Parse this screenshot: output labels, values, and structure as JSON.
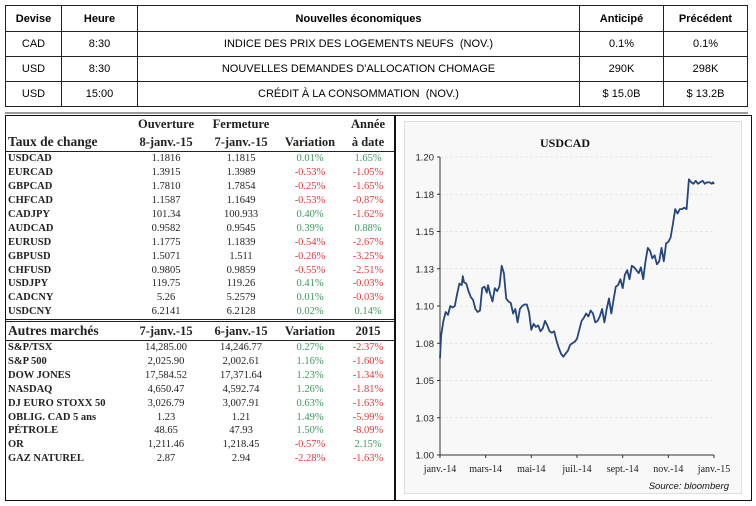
{
  "economic_news": {
    "headers": [
      "Devise",
      "Heure",
      "Nouvelles économiques",
      "Anticipé",
      "Précédent"
    ],
    "rows": [
      {
        "devise": "CAD",
        "heure": "8:30",
        "nouvelle": "INDICE DES PRIX DES LOGEMENTS NEUFS  (NOV.)",
        "anticipe": "0.1%",
        "precedent": "0.1%"
      },
      {
        "devise": "USD",
        "heure": "8:30",
        "nouvelle": "NOUVELLES DEMANDES D'ALLOCATION CHOMAGE",
        "anticipe": "290K",
        "precedent": "298K"
      },
      {
        "devise": "USD",
        "heure": "15:00",
        "nouvelle": "CRÉDIT À LA CONSOMMATION  (NOV.)",
        "anticipe": "$ 15.0B",
        "precedent": "$ 13.2B"
      }
    ]
  },
  "fx": {
    "header_top": [
      "",
      "Ouverture",
      "Fermeture",
      "",
      "Année"
    ],
    "header_bottom": [
      "Taux de change",
      "8-janv.-15",
      "7-janv.-15",
      "Variation",
      "à date"
    ],
    "rows": [
      {
        "name": "USDCAD",
        "open": "1.1816",
        "close": "1.1815",
        "var": "0.01%",
        "ytd": "1.65%"
      },
      {
        "name": "EURCAD",
        "open": "1.3915",
        "close": "1.3989",
        "var": "-0.53%",
        "ytd": "-1.05%"
      },
      {
        "name": "GBPCAD",
        "open": "1.7810",
        "close": "1.7854",
        "var": "-0.25%",
        "ytd": "-1.65%"
      },
      {
        "name": "CHFCAD",
        "open": "1.1587",
        "close": "1.1649",
        "var": "-0.53%",
        "ytd": "-0.87%"
      },
      {
        "name": "CADJPY",
        "open": "101.34",
        "close": "100.933",
        "var": "0.40%",
        "ytd": "-1.62%"
      },
      {
        "name": "AUDCAD",
        "open": "0.9582",
        "close": "0.9545",
        "var": "0.39%",
        "ytd": "0.88%"
      },
      {
        "name": "EURUSD",
        "open": "1.1775",
        "close": "1.1839",
        "var": "-0.54%",
        "ytd": "-2.67%"
      },
      {
        "name": "GBPUSD",
        "open": "1.5071",
        "close": "1.511",
        "var": "-0.26%",
        "ytd": "-3.25%"
      },
      {
        "name": "CHFUSD",
        "open": "0.9805",
        "close": "0.9859",
        "var": "-0.55%",
        "ytd": "-2.51%"
      },
      {
        "name": "USDJPY",
        "open": "119.75",
        "close": "119.26",
        "var": "0.41%",
        "ytd": "-0.03%"
      },
      {
        "name": "CADCNY",
        "open": "5.26",
        "close": "5.2579",
        "var": "0.01%",
        "ytd": "-0.03%"
      },
      {
        "name": "USDCNY",
        "open": "6.2141",
        "close": "6.2128",
        "var": "0.02%",
        "ytd": "0.14%"
      }
    ]
  },
  "markets": {
    "header": [
      "Autres marchés",
      "7-janv.-15",
      "6-janv.-15",
      "Variation",
      "2015"
    ],
    "rows": [
      {
        "name": "S&P/TSX",
        "d1": "14,285.00",
        "d2": "14,246.77",
        "var": "0.27%",
        "ytd": "-2.37%"
      },
      {
        "name": "S&P 500",
        "d1": "2,025.90",
        "d2": "2,002.61",
        "var": "1.16%",
        "ytd": "-1.60%"
      },
      {
        "name": "DOW JONES",
        "d1": "17,584.52",
        "d2": "17,371.64",
        "var": "1.23%",
        "ytd": "-1.34%"
      },
      {
        "name": "NASDAQ",
        "d1": "4,650.47",
        "d2": "4,592.74",
        "var": "1.26%",
        "ytd": "-1.81%"
      },
      {
        "name": "DJ EURO STOXX 50",
        "d1": "3,026.79",
        "d2": "3,007.91",
        "var": "0.63%",
        "ytd": "-1.63%"
      },
      {
        "name": "OBLIG. CAD 5 ans",
        "d1": "1.23",
        "d2": "1.21",
        "var": "1.49%",
        "ytd": "-5.99%"
      },
      {
        "name": "PÉTROLE",
        "d1": "48.65",
        "d2": "47.93",
        "var": "1.50%",
        "ytd": "-8.09%"
      },
      {
        "name": "OR",
        "d1": "1,211.46",
        "d2": "1,218.45",
        "var": "-0.57%",
        "ytd": "2.15%"
      },
      {
        "name": "GAZ NATUREL",
        "d1": "2.87",
        "d2": "2.94",
        "var": "-2.28%",
        "ytd": "-1.63%"
      }
    ]
  },
  "colors": {
    "positive": "#3a9a5c",
    "negative": "#e8383a",
    "line": "#24467f"
  },
  "chart_data": {
    "type": "line",
    "title": "USDCAD",
    "xlabel": "",
    "ylabel": "",
    "source": "Source: bloomberg",
    "ylim": [
      1.0,
      1.2
    ],
    "yticks": [
      1.0,
      1.025,
      1.05,
      1.075,
      1.1,
      1.125,
      1.15,
      1.175,
      1.2
    ],
    "ytick_labels": [
      "1.00",
      "1.03",
      "1.05",
      "1.08",
      "1.10",
      "1.13",
      "1.15",
      "1.18",
      "1.20"
    ],
    "xtick_labels": [
      "janv.-14",
      "mars-14",
      "mai-14",
      "juil.-14",
      "sept.-14",
      "nov.-14",
      "janv.-15"
    ],
    "xlim_months": [
      0,
      12
    ],
    "grid": true,
    "series": [
      {
        "name": "USDCAD",
        "x_months": [
          0.0,
          0.05,
          0.15,
          0.25,
          0.35,
          0.45,
          0.55,
          0.65,
          0.75,
          0.85,
          0.95,
          1.0,
          1.05,
          1.15,
          1.25,
          1.35,
          1.45,
          1.55,
          1.65,
          1.75,
          1.85,
          1.95,
          2.05,
          2.1,
          2.2,
          2.3,
          2.4,
          2.5,
          2.6,
          2.7,
          2.8,
          2.9,
          3.0,
          3.1,
          3.2,
          3.3,
          3.4,
          3.5,
          3.6,
          3.7,
          3.8,
          3.9,
          4.0,
          4.1,
          4.2,
          4.3,
          4.4,
          4.5,
          4.6,
          4.7,
          4.8,
          4.9,
          5.0,
          5.1,
          5.2,
          5.3,
          5.4,
          5.5,
          5.6,
          5.7,
          5.8,
          5.9,
          6.0,
          6.1,
          6.2,
          6.3,
          6.4,
          6.5,
          6.6,
          6.7,
          6.8,
          6.9,
          7.0,
          7.1,
          7.2,
          7.3,
          7.4,
          7.5,
          7.6,
          7.7,
          7.8,
          7.9,
          8.0,
          8.1,
          8.2,
          8.3,
          8.4,
          8.5,
          8.6,
          8.7,
          8.8,
          8.9,
          9.0,
          9.1,
          9.2,
          9.3,
          9.4,
          9.5,
          9.6,
          9.7,
          9.8,
          9.9,
          10.0,
          10.1,
          10.2,
          10.3,
          10.4,
          10.5,
          10.6,
          10.7,
          10.8,
          10.9,
          11.0,
          11.1,
          11.2,
          11.3,
          11.4,
          11.5,
          11.6,
          11.7,
          11.8,
          11.9,
          11.95,
          12.0
        ],
        "values": [
          1.065,
          1.08,
          1.09,
          1.096,
          1.094,
          1.1,
          1.099,
          1.1,
          1.108,
          1.115,
          1.114,
          1.12,
          1.116,
          1.115,
          1.11,
          1.106,
          1.104,
          1.098,
          1.096,
          1.097,
          1.112,
          1.113,
          1.109,
          1.114,
          1.108,
          1.103,
          1.112,
          1.11,
          1.113,
          1.127,
          1.122,
          1.105,
          1.103,
          1.102,
          1.095,
          1.098,
          1.089,
          1.098,
          1.1,
          1.101,
          1.101,
          1.096,
          1.084,
          1.088,
          1.086,
          1.087,
          1.083,
          1.085,
          1.09,
          1.087,
          1.083,
          1.082,
          1.083,
          1.077,
          1.072,
          1.068,
          1.066,
          1.068,
          1.07,
          1.074,
          1.075,
          1.076,
          1.078,
          1.084,
          1.09,
          1.092,
          1.095,
          1.093,
          1.097,
          1.095,
          1.089,
          1.09,
          1.093,
          1.098,
          1.089,
          1.098,
          1.105,
          1.095,
          1.104,
          1.113,
          1.114,
          1.118,
          1.112,
          1.121,
          1.124,
          1.118,
          1.127,
          1.126,
          1.124,
          1.122,
          1.126,
          1.118,
          1.13,
          1.139,
          1.137,
          1.132,
          1.134,
          1.128,
          1.13,
          1.139,
          1.13,
          1.142,
          1.143,
          1.146,
          1.155,
          1.165,
          1.162,
          1.165,
          1.165,
          1.166,
          1.165,
          1.185,
          1.183,
          1.182,
          1.184,
          1.182,
          1.183,
          1.184,
          1.182,
          1.183,
          1.183,
          1.182,
          1.183,
          1.182
        ]
      }
    ]
  }
}
